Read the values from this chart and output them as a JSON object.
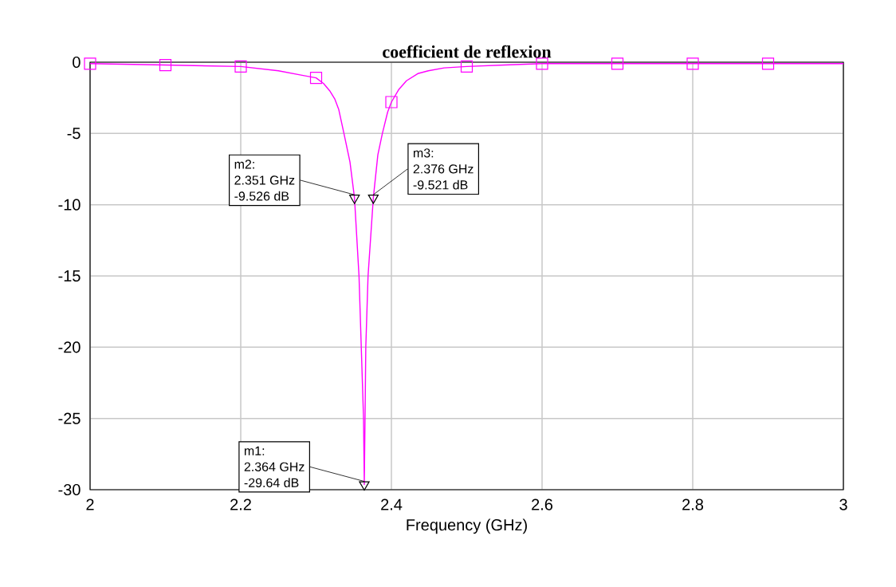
{
  "chart_data": {
    "type": "line",
    "title": "coefficient de reflexion",
    "xlabel": "Frequency (GHz)",
    "xlim": [
      2,
      3
    ],
    "ylim": [
      -30,
      0
    ],
    "xticks": [
      2,
      2.2,
      2.4,
      2.6,
      2.8,
      3
    ],
    "yticks": [
      0,
      -5,
      -10,
      -15,
      -20,
      -25,
      -30
    ],
    "grid": true,
    "series": [
      {
        "color": "#ff00ff",
        "marker": "none",
        "x": [
          2.0,
          2.1,
          2.2,
          2.25,
          2.28,
          2.3,
          2.31,
          2.318,
          2.325,
          2.33,
          2.337,
          2.345,
          2.351,
          2.357,
          2.36,
          2.363,
          2.364,
          2.365,
          2.366,
          2.369,
          2.376,
          2.382,
          2.388,
          2.395,
          2.4,
          2.41,
          2.42,
          2.435,
          2.449,
          2.47,
          2.5,
          2.55,
          2.6,
          2.7,
          2.8,
          2.9,
          3.0
        ],
        "values": [
          -0.1,
          -0.2,
          -0.3,
          -0.6,
          -0.9,
          -1.1,
          -1.5,
          -2,
          -2.6,
          -3.3,
          -5,
          -7,
          -9.526,
          -15,
          -20,
          -25,
          -29.64,
          -25,
          -20,
          -15,
          -9.521,
          -6.5,
          -5,
          -3.5,
          -2.8,
          -1.9,
          -1.3,
          -0.8,
          -0.6,
          -0.4,
          -0.3,
          -0.2,
          -0.1,
          -0.1,
          -0.1,
          -0.1,
          -0.1
        ]
      },
      {
        "type": "scatter",
        "color": "#000000",
        "marker": "triangle",
        "x": [
          2.351,
          2.376,
          2.364
        ],
        "values": [
          -9.526,
          -9.521,
          -29.64
        ]
      },
      {
        "type": "scatter",
        "color": "#ff00ff",
        "marker": "square",
        "x": [
          2.0,
          2.1,
          2.2,
          2.3,
          2.4,
          2.5,
          2.6,
          2.7,
          2.8,
          2.9
        ],
        "values": [
          -0.1,
          -0.2,
          -0.3,
          -1.1,
          -2.8,
          -0.3,
          -0.1,
          -0.1,
          -0.1,
          -0.1
        ]
      }
    ],
    "annotations": [
      "m2:",
      {
        "text": "2.351 GHz",
        "x": 2.351,
        "y": -9.526
      },
      "-9.526 dB",
      {
        "text": "m3:",
        "x": 2.376,
        "y": -9.521
      },
      "2.376 GHz",
      "-9.521 dB",
      "m1:",
      {
        "text": "2.364 GHz",
        "x": 2.364,
        "y": -29.64
      },
      "-29.64 dB"
    ]
  }
}
